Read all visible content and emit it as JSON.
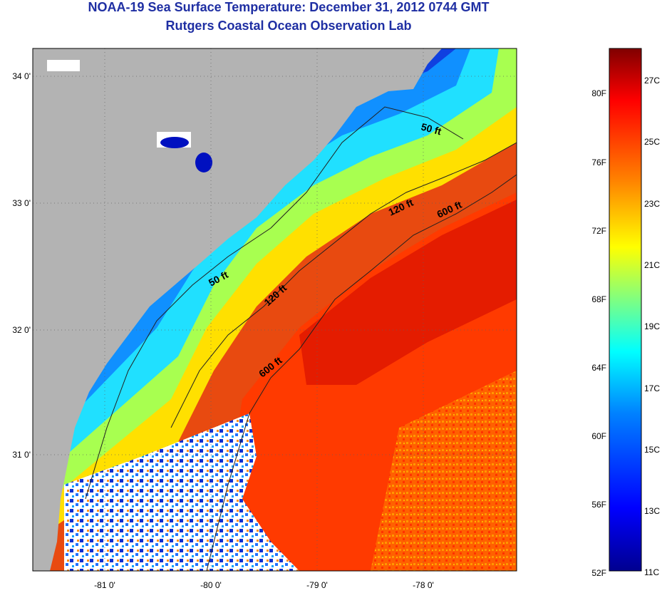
{
  "header": {
    "title": "NOAA-19 Sea Surface Temperature:  December 31, 2012 0744 GMT",
    "subtitle": "Rutgers Coastal Ocean Observation Lab"
  },
  "map": {
    "lat_ticks": [
      {
        "label": "34 0'"
      },
      {
        "label": "33 0'"
      },
      {
        "label": "32 0'"
      },
      {
        "label": "31 0'"
      }
    ],
    "lon_ticks": [
      {
        "label": "-81 0'"
      },
      {
        "label": "-80 0'"
      },
      {
        "label": "-79 0'"
      },
      {
        "label": "-78 0'"
      }
    ],
    "isobaths": [
      {
        "label": "50 ft"
      },
      {
        "label": "50 ft"
      },
      {
        "label": "120 ft"
      },
      {
        "label": "120 ft"
      },
      {
        "label": "600 ft"
      },
      {
        "label": "600 ft"
      }
    ],
    "land_color": "#b3b3b3",
    "nodata_color": "#ffffff"
  },
  "colorbar": {
    "fahrenheit_labels": [
      "80F",
      "76F",
      "72F",
      "68F",
      "64F",
      "60F",
      "56F",
      "52F"
    ],
    "celsius_labels": [
      "27C",
      "25C",
      "23C",
      "21C",
      "19C",
      "17C",
      "15C",
      "13C",
      "11C"
    ],
    "colors": [
      "#00008f",
      "#0000ff",
      "#0080ff",
      "#00ffff",
      "#80ff80",
      "#ffff00",
      "#ff8000",
      "#ff0000",
      "#800000"
    ]
  }
}
